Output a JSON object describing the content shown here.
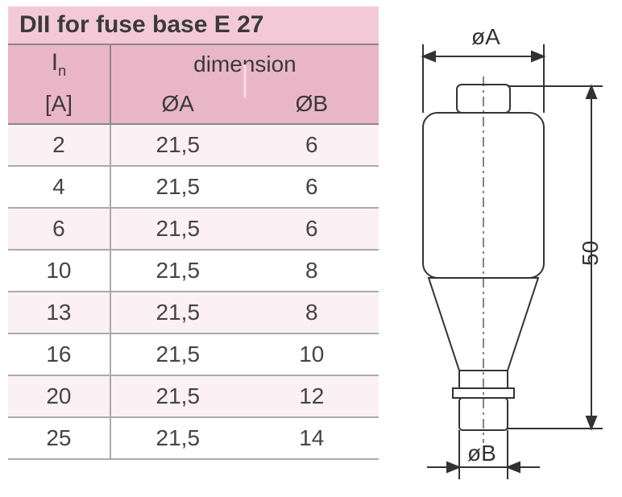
{
  "title": "DII for fuse base E 27",
  "table": {
    "header": {
      "in_label": "I",
      "in_sub": "n",
      "in_unit": "[A]",
      "dim_label": "dimension",
      "col_a": "ØA",
      "col_b": "ØB"
    },
    "rows": [
      {
        "in": "2",
        "a": "21,5",
        "b": "6"
      },
      {
        "in": "4",
        "a": "21,5",
        "b": "6"
      },
      {
        "in": "6",
        "a": "21,5",
        "b": "6"
      },
      {
        "in": "10",
        "a": "21,5",
        "b": "8"
      },
      {
        "in": "13",
        "a": "21,5",
        "b": "8"
      },
      {
        "in": "16",
        "a": "21,5",
        "b": "10"
      },
      {
        "in": "20",
        "a": "21,5",
        "b": "12"
      },
      {
        "in": "25",
        "a": "21,5",
        "b": "14"
      }
    ],
    "colors": {
      "title_bg": "#f3c9d8",
      "header_bg": "#e9b6c8",
      "row_odd_bg": "#fbf0f4",
      "row_even_bg": "#ffffff",
      "border": "#aaaaaa",
      "text": "#444444"
    }
  },
  "diagram": {
    "label_top": "øA",
    "label_bottom": "øB",
    "label_height": "50",
    "stroke": "#333333",
    "stroke_width": 2,
    "fill": "#ffffff",
    "font_size": 28
  }
}
